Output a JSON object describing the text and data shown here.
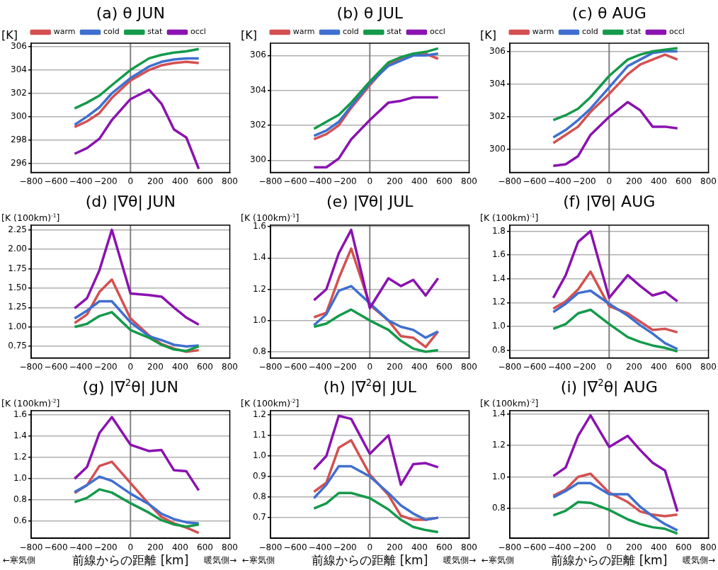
{
  "chart_data": [
    {
      "type": "line",
      "title": "(a) θ JUN",
      "ylabel": "[K]",
      "legend": "top",
      "grid": "y",
      "x": [
        -450,
        -350,
        -250,
        -150,
        0,
        150,
        250,
        350,
        450,
        550
      ],
      "xlim": [
        -800,
        800
      ],
      "xticks": [
        -800,
        -600,
        -400,
        -200,
        0,
        200,
        400,
        600,
        800
      ],
      "ylim": [
        295.2,
        306.3
      ],
      "yticks": [
        296,
        298,
        300,
        302,
        304,
        306
      ],
      "ref_lines": [
        {
          "axis": "x",
          "value": 0,
          "color": "#808080"
        }
      ],
      "series": [
        {
          "name": "warm",
          "color": "#d45050",
          "values": [
            299.1,
            299.6,
            300.3,
            301.6,
            303.1,
            304.0,
            304.4,
            304.6,
            304.7,
            304.6
          ]
        },
        {
          "name": "cold",
          "color": "#3f6fcf",
          "values": [
            299.3,
            300.0,
            300.8,
            302.0,
            303.3,
            304.3,
            304.7,
            304.9,
            305.0,
            305.0
          ]
        },
        {
          "name": "stat",
          "color": "#149a4a",
          "values": [
            300.7,
            301.2,
            301.8,
            302.7,
            304.0,
            305.0,
            305.3,
            305.5,
            305.6,
            305.8
          ]
        },
        {
          "name": "occl",
          "color": "#8a12b0",
          "values": [
            296.8,
            297.3,
            298.1,
            299.7,
            301.5,
            302.3,
            301.1,
            298.9,
            298.2,
            295.5
          ]
        }
      ]
    },
    {
      "type": "line",
      "title": "(b) θ JUL",
      "ylabel": "[K]",
      "legend": "top",
      "grid": "y",
      "x": [
        -450,
        -350,
        -250,
        -150,
        0,
        150,
        250,
        350,
        450,
        550
      ],
      "xlim": [
        -800,
        800
      ],
      "xticks": [
        -800,
        -600,
        -400,
        -200,
        0,
        200,
        400,
        600,
        800
      ],
      "ylim": [
        299.3,
        306.7
      ],
      "yticks": [
        300,
        302,
        304,
        306
      ],
      "ref_lines": [
        {
          "axis": "x",
          "value": 0,
          "color": "#808080"
        }
      ],
      "series": [
        {
          "name": "warm",
          "color": "#d45050",
          "values": [
            301.2,
            301.5,
            302.0,
            303.0,
            304.3,
            305.5,
            305.8,
            306.0,
            306.1,
            305.8
          ]
        },
        {
          "name": "cold",
          "color": "#3f6fcf",
          "values": [
            301.4,
            301.7,
            302.2,
            303.1,
            304.4,
            305.4,
            305.7,
            306.0,
            306.0,
            306.1
          ]
        },
        {
          "name": "stat",
          "color": "#149a4a",
          "values": [
            301.8,
            302.2,
            302.6,
            303.3,
            304.5,
            305.6,
            305.9,
            306.1,
            306.2,
            306.4
          ]
        },
        {
          "name": "occl",
          "color": "#8a12b0",
          "values": [
            299.6,
            299.6,
            300.1,
            301.2,
            302.3,
            303.3,
            303.4,
            303.6,
            303.6,
            303.6
          ]
        }
      ]
    },
    {
      "type": "line",
      "title": "(c) θ AUG",
      "ylabel": "[K]",
      "legend": "top",
      "grid": "y",
      "x": [
        -450,
        -350,
        -250,
        -150,
        0,
        150,
        250,
        350,
        450,
        550
      ],
      "xlim": [
        -800,
        800
      ],
      "xticks": [
        -800,
        -600,
        -400,
        -200,
        0,
        200,
        400,
        600,
        800
      ],
      "ylim": [
        298.6,
        306.5
      ],
      "yticks": [
        300,
        302,
        304,
        306
      ],
      "ref_lines": [
        {
          "axis": "x",
          "value": 0,
          "color": "#808080"
        }
      ],
      "series": [
        {
          "name": "warm",
          "color": "#d45050",
          "values": [
            300.4,
            300.9,
            301.4,
            302.3,
            303.4,
            304.6,
            305.2,
            305.5,
            305.8,
            305.5
          ]
        },
        {
          "name": "cold",
          "color": "#3f6fcf",
          "values": [
            300.75,
            301.2,
            301.8,
            302.5,
            303.8,
            305.1,
            305.5,
            305.9,
            306.0,
            306.0
          ]
        },
        {
          "name": "stat",
          "color": "#149a4a",
          "values": [
            301.8,
            302.1,
            302.5,
            303.2,
            304.5,
            305.5,
            305.8,
            306.0,
            306.1,
            306.2
          ]
        },
        {
          "name": "occl",
          "color": "#8a12b0",
          "values": [
            299.0,
            299.1,
            299.6,
            300.9,
            302.0,
            302.9,
            302.4,
            301.4,
            301.4,
            301.3
          ]
        }
      ]
    },
    {
      "type": "line",
      "title": "(d) |∇θ| JUN",
      "ylabel": "[K (100km)$^{-1}$]",
      "grid": "y",
      "x": [
        -450,
        -350,
        -250,
        -150,
        0,
        150,
        250,
        350,
        450,
        550
      ],
      "xlim": [
        -800,
        800
      ],
      "xticks": [
        -800,
        -600,
        -400,
        -200,
        0,
        200,
        400,
        600,
        800
      ],
      "ylim": [
        0.6,
        2.31
      ],
      "yticks": [
        0.75,
        {
          "value": 1,
          "label": "1.00"
        },
        1.25,
        {
          "value": 1.5,
          "label": "1.50"
        },
        1.75,
        {
          "value": 2,
          "label": "2.00"
        },
        2.25
      ],
      "ref_lines": [
        {
          "axis": "x",
          "value": 0,
          "color": "#808080"
        }
      ],
      "series": [
        {
          "color": "#d45050",
          "values": [
            1.05,
            1.16,
            1.45,
            1.61,
            1.11,
            0.89,
            0.78,
            0.72,
            0.68,
            0.7
          ]
        },
        {
          "color": "#3f6fcf",
          "values": [
            1.11,
            1.21,
            1.33,
            1.33,
            1.06,
            0.88,
            0.83,
            0.77,
            0.75,
            0.76
          ]
        },
        {
          "color": "#149a4a",
          "values": [
            1.0,
            1.04,
            1.14,
            1.19,
            0.96,
            0.86,
            0.77,
            0.71,
            0.69,
            0.75
          ]
        },
        {
          "color": "#8a12b0",
          "values": [
            1.24,
            1.37,
            1.73,
            2.25,
            1.43,
            1.41,
            1.39,
            1.25,
            1.12,
            1.03
          ]
        }
      ]
    },
    {
      "type": "line",
      "title": "(e) |∇θ| JUL",
      "ylabel": "[K (100km)$^{-1}$]",
      "grid": "y",
      "x": [
        -450,
        -350,
        -250,
        -150,
        0,
        150,
        250,
        350,
        450,
        550
      ],
      "xlim": [
        -800,
        800
      ],
      "xticks": [
        -800,
        -600,
        -400,
        -200,
        0,
        200,
        400,
        600,
        800
      ],
      "ylim": [
        0.76,
        1.61
      ],
      "yticks": [
        0.8,
        {
          "value": 1,
          "label": "1.0"
        },
        1.2,
        1.4,
        1.6
      ],
      "ref_lines": [
        {
          "axis": "x",
          "value": 0,
          "color": "#808080"
        }
      ],
      "series": [
        {
          "color": "#d45050",
          "values": [
            1.02,
            1.05,
            1.27,
            1.46,
            1.1,
            1.0,
            0.9,
            0.89,
            0.83,
            0.93
          ]
        },
        {
          "color": "#3f6fcf",
          "values": [
            0.97,
            1.04,
            1.19,
            1.22,
            1.11,
            1.0,
            0.96,
            0.94,
            0.89,
            0.93
          ]
        },
        {
          "color": "#149a4a",
          "values": [
            0.96,
            0.98,
            1.03,
            1.07,
            1.0,
            0.94,
            0.87,
            0.82,
            0.8,
            0.81
          ]
        },
        {
          "color": "#8a12b0",
          "values": [
            1.13,
            1.2,
            1.43,
            1.58,
            1.08,
            1.27,
            1.22,
            1.26,
            1.16,
            1.27
          ]
        }
      ]
    },
    {
      "type": "line",
      "title": "(f) |∇θ| AUG",
      "ylabel": "[K (100km)$^{-1}$]",
      "grid": "y",
      "x": [
        -450,
        -350,
        -250,
        -150,
        0,
        150,
        250,
        350,
        450,
        550
      ],
      "xlim": [
        -800,
        800
      ],
      "xticks": [
        -800,
        -600,
        -400,
        -200,
        0,
        200,
        400,
        600,
        800
      ],
      "ylim": [
        0.735,
        1.85
      ],
      "yticks": [
        0.8,
        {
          "value": 1,
          "label": "1.0"
        },
        1.2,
        1.4,
        1.6,
        1.8
      ],
      "ref_lines": [
        {
          "axis": "x",
          "value": 0,
          "color": "#808080"
        }
      ],
      "series": [
        {
          "color": "#d45050",
          "values": [
            1.15,
            1.21,
            1.31,
            1.46,
            1.17,
            1.11,
            1.04,
            0.97,
            0.98,
            0.95
          ]
        },
        {
          "color": "#3f6fcf",
          "values": [
            1.12,
            1.19,
            1.28,
            1.3,
            1.19,
            1.09,
            1.01,
            0.94,
            0.86,
            0.81
          ]
        },
        {
          "color": "#149a4a",
          "values": [
            0.98,
            1.02,
            1.11,
            1.14,
            1.02,
            0.91,
            0.87,
            0.84,
            0.82,
            0.79
          ]
        },
        {
          "color": "#8a12b0",
          "values": [
            1.24,
            1.43,
            1.71,
            1.8,
            1.24,
            1.43,
            1.34,
            1.26,
            1.29,
            1.21
          ]
        }
      ]
    },
    {
      "type": "line",
      "title": "(g) |∇$^{2}$θ| JUN",
      "ylabel": "[K (100km)$^{-2}$]",
      "xlabel": "前線からの距離 [km]",
      "annotations": [
        "←寒気側",
        "暖気側→"
      ],
      "grid": "y",
      "x": [
        -450,
        -350,
        -250,
        -150,
        0,
        150,
        250,
        350,
        450,
        550
      ],
      "xlim": [
        -800,
        800
      ],
      "xticks": [
        -800,
        -600,
        -400,
        -200,
        0,
        200,
        400,
        600,
        800
      ],
      "ylim": [
        0.44,
        1.64
      ],
      "yticks": [
        0.6,
        0.8,
        {
          "value": 1,
          "label": "1.0"
        },
        1.2,
        1.4,
        1.6
      ],
      "ref_lines": [
        {
          "axis": "x",
          "value": 0,
          "color": "#808080"
        }
      ],
      "series": [
        {
          "color": "#d45050",
          "values": [
            0.865,
            0.94,
            1.12,
            1.16,
            0.96,
            0.76,
            0.64,
            0.58,
            0.54,
            0.49
          ]
        },
        {
          "color": "#3f6fcf",
          "values": [
            0.875,
            0.94,
            1.02,
            0.98,
            0.86,
            0.76,
            0.67,
            0.62,
            0.59,
            0.58
          ]
        },
        {
          "color": "#149a4a",
          "values": [
            0.78,
            0.82,
            0.9,
            0.87,
            0.77,
            0.68,
            0.61,
            0.57,
            0.55,
            0.57
          ]
        },
        {
          "color": "#8a12b0",
          "values": [
            1.0,
            1.11,
            1.43,
            1.58,
            1.32,
            1.26,
            1.27,
            1.08,
            1.07,
            0.89
          ]
        }
      ]
    },
    {
      "type": "line",
      "title": "(h) |∇$^{2}$θ| JUL",
      "ylabel": "[K (100km)$^{-2}$]",
      "xlabel": "前線からの距離 [km]",
      "annotations": [
        "←寒気側",
        "暖気側→"
      ],
      "grid": "y",
      "x": [
        -450,
        -350,
        -250,
        -150,
        0,
        150,
        250,
        350,
        450,
        550
      ],
      "xlim": [
        -800,
        800
      ],
      "xticks": [
        -800,
        -600,
        -400,
        -200,
        0,
        200,
        400,
        600,
        800
      ],
      "ylim": [
        0.6,
        1.22
      ],
      "yticks": [
        0.7,
        0.8,
        0.9,
        {
          "value": 1,
          "label": "1.0"
        },
        1.1,
        1.2
      ],
      "ref_lines": [
        {
          "axis": "x",
          "value": 0,
          "color": "#808080"
        }
      ],
      "series": [
        {
          "color": "#d45050",
          "values": [
            0.826,
            0.87,
            1.04,
            1.076,
            0.91,
            0.81,
            0.71,
            0.69,
            0.69,
            0.7
          ]
        },
        {
          "color": "#3f6fcf",
          "values": [
            0.795,
            0.86,
            0.95,
            0.95,
            0.9,
            0.82,
            0.76,
            0.72,
            0.69,
            0.7
          ]
        },
        {
          "color": "#149a4a",
          "values": [
            0.745,
            0.77,
            0.82,
            0.82,
            0.795,
            0.74,
            0.69,
            0.655,
            0.64,
            0.63
          ]
        },
        {
          "color": "#8a12b0",
          "values": [
            0.935,
            1.0,
            1.195,
            1.18,
            1.01,
            1.1,
            0.86,
            0.96,
            0.965,
            0.945
          ]
        }
      ]
    },
    {
      "type": "line",
      "title": "(i) |∇$^{2}$θ| AUG",
      "ylabel": "[K (100km)$^{-2}$]",
      "xlabel": "前線からの距離 [km]",
      "annotations": [
        "←寒気側",
        "暖気側→"
      ],
      "grid": "y",
      "x": [
        -450,
        -350,
        -250,
        -150,
        0,
        150,
        250,
        350,
        450,
        550
      ],
      "xlim": [
        -800,
        800
      ],
      "xticks": [
        -800,
        -600,
        -400,
        -200,
        0,
        200,
        400,
        600,
        800
      ],
      "ylim": [
        0.61,
        1.42
      ],
      "yticks": [
        0.8,
        {
          "value": 1,
          "label": "1.0"
        },
        1.2,
        1.4
      ],
      "ref_lines": [
        {
          "axis": "x",
          "value": 0,
          "color": "#808080"
        }
      ],
      "series": [
        {
          "color": "#d45050",
          "values": [
            0.88,
            0.92,
            1.0,
            1.02,
            0.9,
            0.84,
            0.78,
            0.76,
            0.75,
            0.76
          ]
        },
        {
          "color": "#3f6fcf",
          "values": [
            0.87,
            0.91,
            0.96,
            0.96,
            0.89,
            0.89,
            0.81,
            0.75,
            0.7,
            0.66
          ]
        },
        {
          "color": "#149a4a",
          "values": [
            0.755,
            0.785,
            0.84,
            0.835,
            0.79,
            0.73,
            0.7,
            0.68,
            0.67,
            0.64
          ]
        },
        {
          "color": "#8a12b0",
          "values": [
            1.005,
            1.06,
            1.26,
            1.39,
            1.19,
            1.26,
            1.17,
            1.09,
            1.04,
            0.78
          ]
        }
      ]
    }
  ]
}
